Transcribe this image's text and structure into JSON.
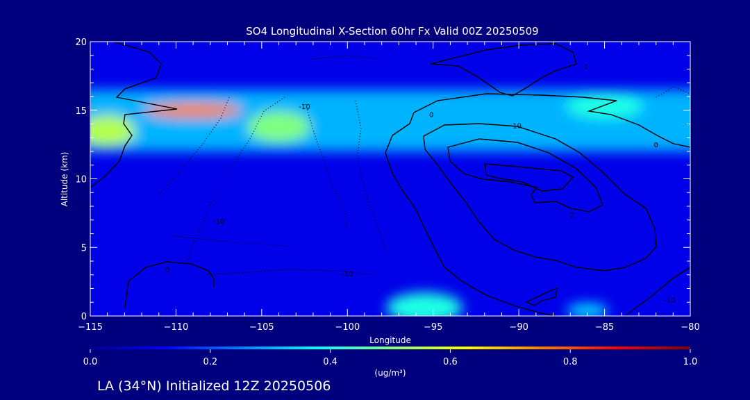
{
  "chart_data": {
    "type": "heatmap",
    "title": "SO4 Longitudinal X-Section 60hr  Fx Valid 00Z 20250509",
    "xlabel": "Longitude",
    "ylabel": "Altitude (km)",
    "xlim": [
      -115,
      -80
    ],
    "ylim": [
      0,
      20
    ],
    "x_ticks": [
      "-115",
      "-110",
      "-105",
      "-100",
      "-95",
      "-90",
      "-85",
      "-80"
    ],
    "y_ticks": [
      "0",
      "5",
      "10",
      "15",
      "20"
    ],
    "colorbar": {
      "range": [
        0.0,
        1.0
      ],
      "ticks": [
        "0.0",
        "0.2",
        "0.4",
        "0.6",
        "0.8",
        "1.0"
      ],
      "unit": "(ug/m³)",
      "colormap": [
        "#00008f",
        "#0000ff",
        "#0080ff",
        "#00ffff",
        "#80ff80",
        "#ffff00",
        "#ff8000",
        "#ff0000",
        "#800000"
      ]
    },
    "background_level": 0.1,
    "features": [
      {
        "desc": "upper-tropospheric SO4 layer",
        "lon": [
          -115,
          -80
        ],
        "alt": [
          12,
          16.5
        ],
        "value": 0.3
      },
      {
        "desc": "layer maximum",
        "lon": -109,
        "alt": 15,
        "value": 0.75
      },
      {
        "desc": "secondary maximum",
        "lon": -104,
        "alt": 13.8,
        "value": 0.5
      },
      {
        "desc": "western maximum",
        "lon": -114,
        "alt": 13.5,
        "value": 0.55
      },
      {
        "desc": "eastern upper maximum",
        "lon": -85,
        "alt": 15.3,
        "value": 0.4
      },
      {
        "desc": "surface maximum",
        "lon": -95.5,
        "alt": 0.6,
        "value": 0.4
      },
      {
        "desc": "surface maximum",
        "lon": -86,
        "alt": 0.4,
        "value": 0.35
      }
    ],
    "contour_labels": [
      {
        "text": "-10",
        "lon": -102.5,
        "alt": 15.3,
        "style": "dotted"
      },
      {
        "text": "-10",
        "lon": -107.5,
        "alt": 6.9,
        "style": "dotted"
      },
      {
        "text": "-10",
        "lon": -100,
        "alt": 3.1,
        "style": "dotted"
      },
      {
        "text": "0",
        "lon": -110.5,
        "alt": 3.4,
        "style": "solid"
      },
      {
        "text": "0",
        "lon": -95.1,
        "alt": 14.7,
        "style": "solid"
      },
      {
        "text": "10",
        "lon": -90.1,
        "alt": 13.9,
        "style": "solid"
      },
      {
        "text": "0",
        "lon": -86.9,
        "alt": 7.4,
        "style": "solid"
      },
      {
        "text": "0",
        "lon": -82,
        "alt": 12.5,
        "style": "solid"
      },
      {
        "text": "0",
        "lon": -86.1,
        "alt": 18.2,
        "style": "solid"
      },
      {
        "text": "-10",
        "lon": -81.2,
        "alt": 1.2,
        "style": "dotted"
      }
    ]
  },
  "footer": "LA (34°N) Initialized 12Z 20250506"
}
